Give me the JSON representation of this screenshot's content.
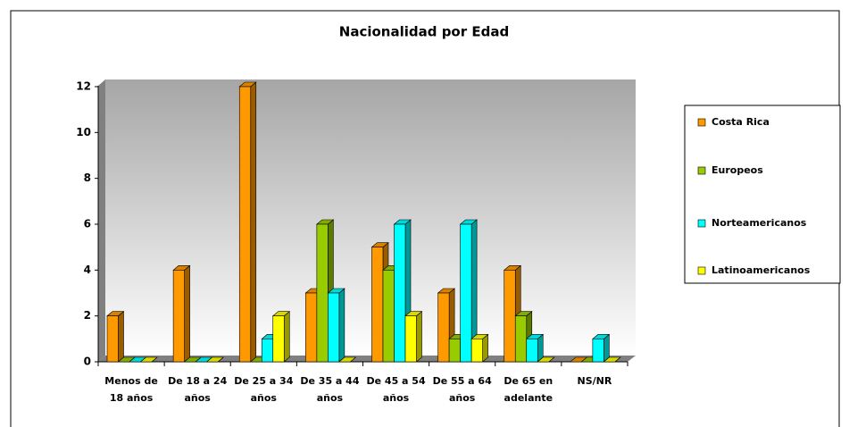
{
  "chart_data": {
    "type": "bar3d",
    "title": "Nacionalidad por Edad",
    "categories": [
      "Menos de 18 años",
      "De 18 a 24 años",
      "De 25 a 34 años",
      "De 35 a 44 años",
      "De 45 a 54 años",
      "De 55 a 64 años",
      "De 65 en adelante",
      "NS/NR"
    ],
    "series": [
      {
        "name": "Costa Rica",
        "color": "#ff9900",
        "values": [
          2,
          4,
          12,
          3,
          5,
          3,
          4,
          0
        ]
      },
      {
        "name": "Europeos",
        "color": "#99cc00",
        "values": [
          0,
          0,
          0,
          6,
          4,
          1,
          2,
          0
        ]
      },
      {
        "name": "Norteamericanos",
        "color": "#00ffff",
        "values": [
          0,
          0,
          1,
          3,
          6,
          6,
          1,
          1
        ]
      },
      {
        "name": "Latinoamericanos",
        "color": "#ffff00",
        "values": [
          0,
          0,
          2,
          0,
          2,
          1,
          0,
          0
        ]
      }
    ],
    "ylim": [
      0,
      12
    ],
    "yticks": [
      0,
      2,
      4,
      6,
      8,
      10,
      12
    ],
    "legend": "right"
  }
}
